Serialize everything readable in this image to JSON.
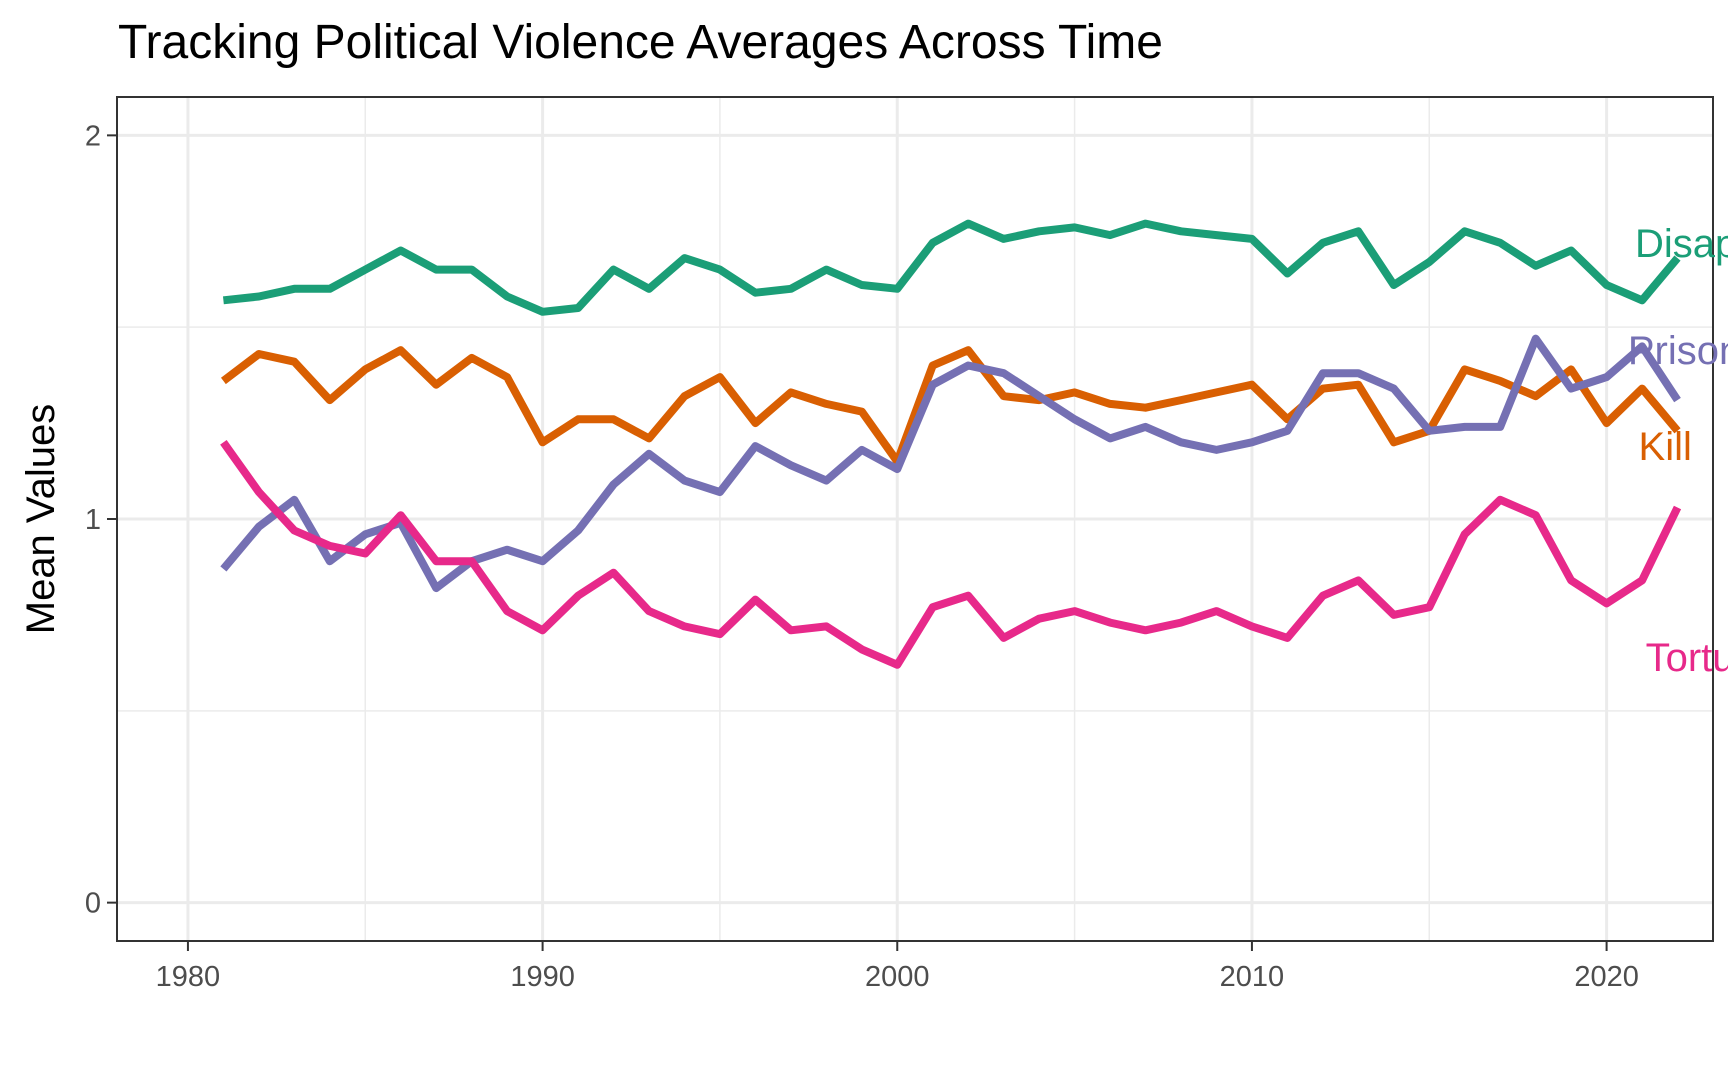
{
  "chart_data": {
    "type": "line",
    "title": "Tracking Political Violence Averages Across Time",
    "xlabel": "",
    "ylabel": "Mean Values",
    "xlim": [
      1978,
      2023
    ],
    "ylim": [
      -0.1,
      2.1
    ],
    "x_ticks": [
      1980,
      1990,
      2000,
      2010,
      2020
    ],
    "x_tick_labels": [
      "1980",
      "1990",
      "2000",
      "2010",
      "2020"
    ],
    "y_ticks": [
      0,
      1,
      2
    ],
    "y_tick_labels": [
      "0",
      "1",
      "2"
    ],
    "grid": true,
    "legend": "direct labels at line ends",
    "x": [
      1981,
      1982,
      1983,
      1984,
      1985,
      1986,
      1987,
      1988,
      1989,
      1990,
      1991,
      1992,
      1993,
      1994,
      1995,
      1996,
      1997,
      1998,
      1999,
      2000,
      2001,
      2002,
      2003,
      2004,
      2005,
      2006,
      2007,
      2008,
      2009,
      2010,
      2011,
      2012,
      2013,
      2014,
      2015,
      2016,
      2017,
      2018,
      2019,
      2020,
      2021,
      2022
    ],
    "series": [
      {
        "name": "Disap",
        "color": "#1b9e77",
        "values": [
          1.57,
          1.58,
          1.6,
          1.6,
          1.65,
          1.7,
          1.65,
          1.65,
          1.58,
          1.54,
          1.55,
          1.65,
          1.6,
          1.68,
          1.65,
          1.59,
          1.6,
          1.65,
          1.61,
          1.6,
          1.72,
          1.77,
          1.73,
          1.75,
          1.76,
          1.74,
          1.77,
          1.75,
          1.74,
          1.73,
          1.64,
          1.72,
          1.75,
          1.61,
          1.67,
          1.75,
          1.72,
          1.66,
          1.7,
          1.61,
          1.57,
          1.68
        ],
        "label_x": 2020.8,
        "label_y": 1.72
      },
      {
        "name": "Kill",
        "color": "#d95f02",
        "values": [
          1.36,
          1.43,
          1.41,
          1.31,
          1.39,
          1.44,
          1.35,
          1.42,
          1.37,
          1.2,
          1.26,
          1.26,
          1.21,
          1.32,
          1.37,
          1.25,
          1.33,
          1.3,
          1.28,
          1.15,
          1.4,
          1.44,
          1.32,
          1.31,
          1.33,
          1.3,
          1.29,
          1.31,
          1.33,
          1.35,
          1.26,
          1.34,
          1.35,
          1.2,
          1.23,
          1.39,
          1.36,
          1.32,
          1.39,
          1.25,
          1.34,
          1.23
        ],
        "label_x": 2020.9,
        "label_y": 1.19
      },
      {
        "name": "Prison",
        "color": "#7570b3",
        "values": [
          0.87,
          0.98,
          1.05,
          0.89,
          0.96,
          0.99,
          0.82,
          0.89,
          0.92,
          0.89,
          0.97,
          1.09,
          1.17,
          1.1,
          1.07,
          1.19,
          1.14,
          1.1,
          1.18,
          1.13,
          1.35,
          1.4,
          1.38,
          1.32,
          1.26,
          1.21,
          1.24,
          1.2,
          1.18,
          1.2,
          1.23,
          1.38,
          1.38,
          1.34,
          1.23,
          1.24,
          1.24,
          1.47,
          1.34,
          1.37,
          1.45,
          1.31
        ],
        "label_x": 2020.6,
        "label_y": 1.44
      },
      {
        "name": "Torture",
        "color": "#e7298a",
        "values": [
          1.2,
          1.07,
          0.97,
          0.93,
          0.91,
          1.01,
          0.89,
          0.89,
          0.76,
          0.71,
          0.8,
          0.86,
          0.76,
          0.72,
          0.7,
          0.79,
          0.71,
          0.72,
          0.66,
          0.62,
          0.77,
          0.8,
          0.69,
          0.74,
          0.76,
          0.73,
          0.71,
          0.73,
          0.76,
          0.72,
          0.69,
          0.8,
          0.84,
          0.75,
          0.77,
          0.96,
          1.05,
          1.01,
          0.84,
          0.78,
          0.84,
          1.03
        ],
        "label_x": 2021.1,
        "label_y": 0.64
      }
    ]
  }
}
